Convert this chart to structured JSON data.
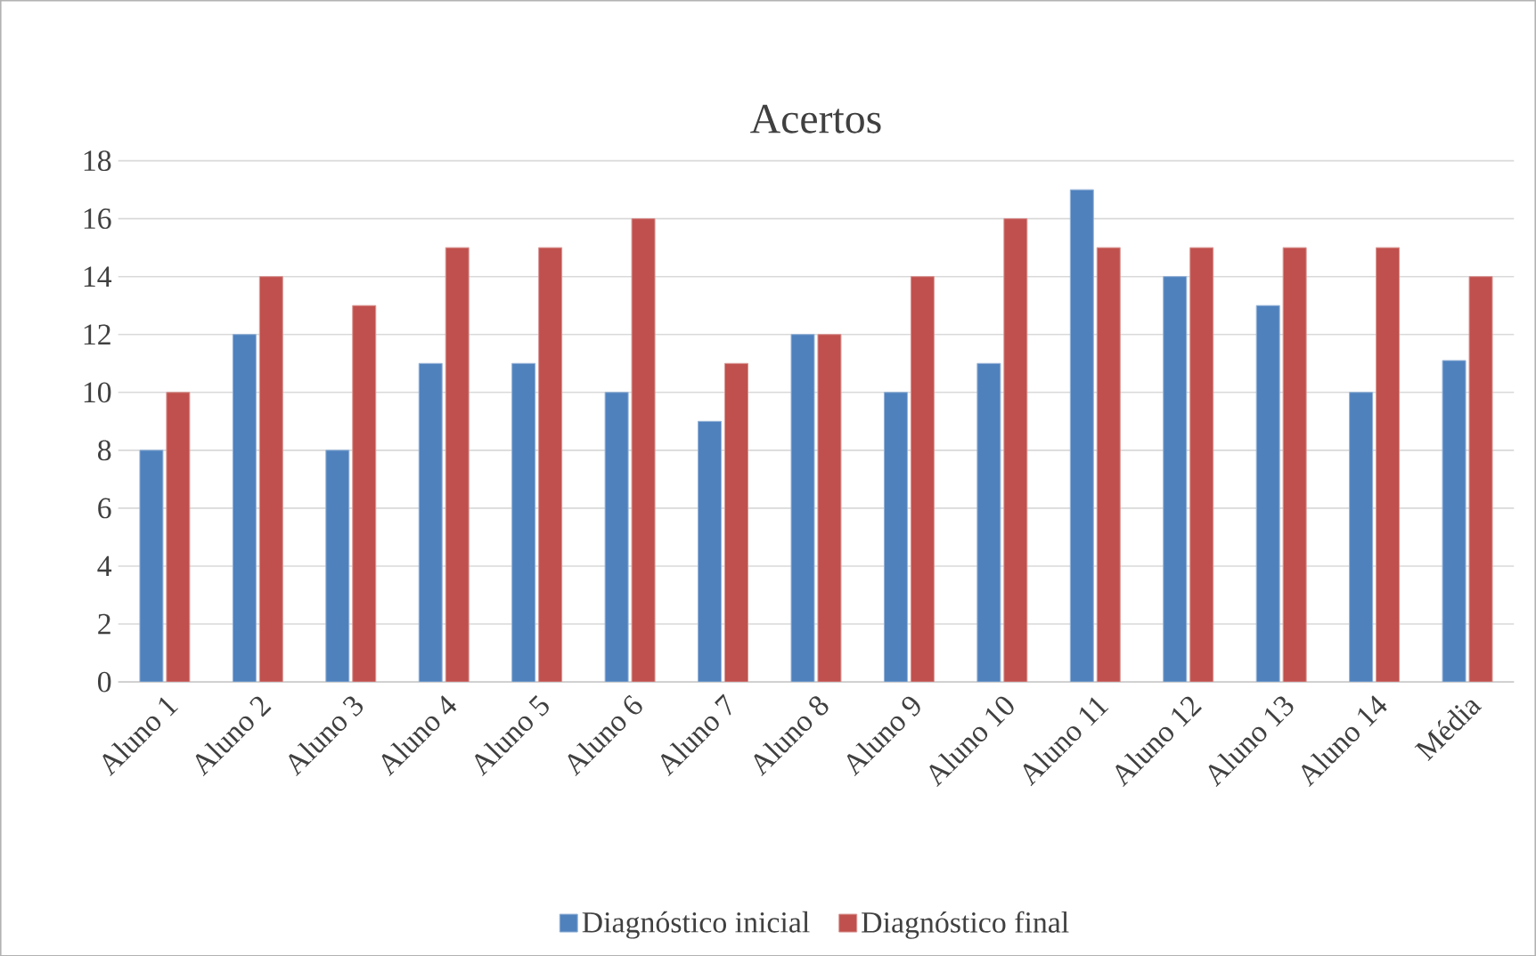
{
  "chart_data": {
    "type": "bar",
    "title": "Acertos",
    "categories": [
      "Aluno 1",
      "Aluno 2",
      "Aluno 3",
      "Aluno 4",
      "Aluno 5",
      "Aluno 6",
      "Aluno 7",
      "Aluno 8",
      "Aluno 9",
      "Aluno 10",
      "Aluno 11",
      "Aluno 12",
      "Aluno 13",
      "Aluno 14",
      "Média"
    ],
    "series": [
      {
        "name": "Diagnóstico inicial",
        "color": "#4f81bd",
        "values": [
          8,
          12,
          8,
          11,
          11,
          10,
          9,
          12,
          10,
          11,
          17,
          14,
          13,
          10,
          11.1
        ]
      },
      {
        "name": "Diagnóstico final",
        "color": "#c0504d",
        "values": [
          10,
          14,
          13,
          15,
          15,
          16,
          11,
          12,
          14,
          16,
          15,
          15,
          15,
          15,
          14
        ]
      }
    ],
    "ylim": [
      0,
      18
    ],
    "yticks": [
      0,
      2,
      4,
      6,
      8,
      10,
      12,
      14,
      16,
      18
    ],
    "grid": "y",
    "legend": "bottom"
  }
}
